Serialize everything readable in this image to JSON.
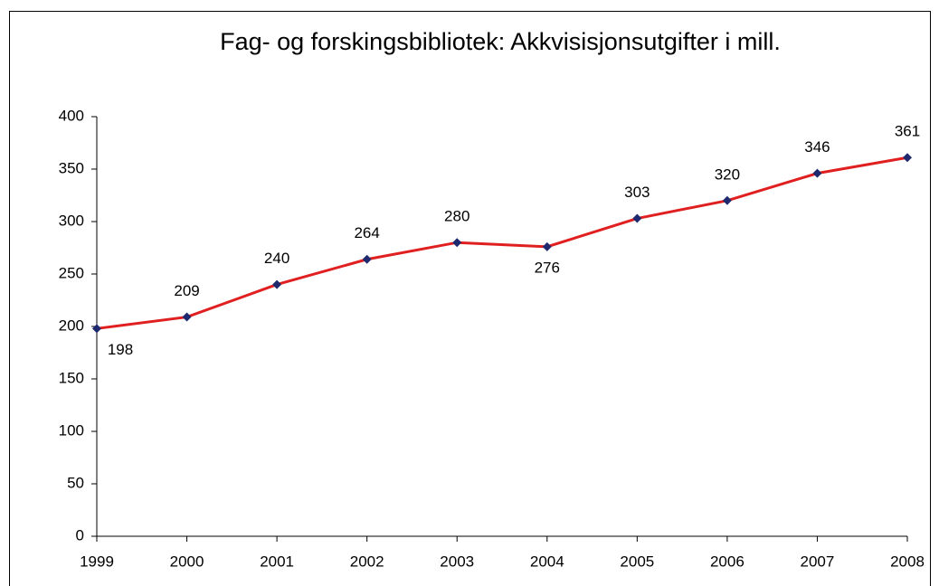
{
  "chart_data": {
    "type": "line",
    "title": "Fag- og forskingsbibliotek: Akkvisisjonsutgifter i mill.",
    "x": [
      1999,
      2000,
      2001,
      2002,
      2003,
      2004,
      2005,
      2006,
      2007,
      2008
    ],
    "series": [
      {
        "name": "Akkvisisjonsutgifter",
        "color": "#e02020",
        "marker_color": "#1f2a6e",
        "values": [
          198,
          209,
          240,
          264,
          280,
          276,
          303,
          320,
          346,
          361
        ]
      }
    ],
    "xlim": [
      1999,
      2008
    ],
    "xticks": [
      1999,
      2000,
      2001,
      2002,
      2003,
      2004,
      2005,
      2006,
      2007,
      2008
    ],
    "ylim": [
      0,
      400
    ],
    "yticks": [
      0,
      50,
      100,
      150,
      200,
      250,
      300,
      350,
      400
    ],
    "grid": false,
    "legend": false
  }
}
